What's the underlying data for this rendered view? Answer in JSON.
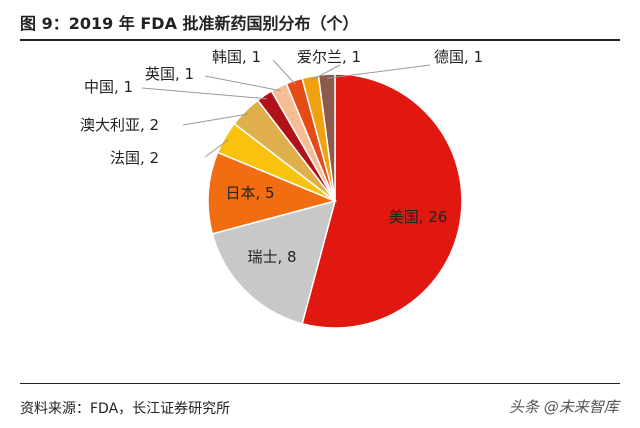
{
  "header": {
    "title": "图 9：2019 年 FDA 批准新药国别分布（个）"
  },
  "footer": {
    "source": "资料来源：FDA，长江证券研究所",
    "watermark": "头条 @未来智库"
  },
  "chart_data": {
    "type": "pie",
    "title": "图 9：2019 年 FDA 批准新药国别分布（个）",
    "series": [
      {
        "slices": [
          {
            "name": "美国",
            "value": 26,
            "label": "美国, 26",
            "color": "#E0180F"
          },
          {
            "name": "瑞士",
            "value": 8,
            "label": "瑞士, 8",
            "color": "#C8C8C8"
          },
          {
            "name": "日本",
            "value": 5,
            "label": "日本, 5",
            "color": "#F26C12"
          },
          {
            "name": "法国",
            "value": 2,
            "label": "法国, 2",
            "color": "#F8C20E"
          },
          {
            "name": "澳大利亚",
            "value": 2,
            "label": "澳大利亚, 2",
            "color": "#DFAF4B"
          },
          {
            "name": "中国",
            "value": 1,
            "label": "中国, 1",
            "color": "#B0121A"
          },
          {
            "name": "英国",
            "value": 1,
            "label": "英国, 1",
            "color": "#F7BE96"
          },
          {
            "name": "韩国",
            "value": 1,
            "label": "韩国, 1",
            "color": "#E64A17"
          },
          {
            "name": "爱尔兰",
            "value": 1,
            "label": "爱尔兰, 1",
            "color": "#F1A00F"
          },
          {
            "name": "德国",
            "value": 1,
            "label": "德国, 1",
            "color": "#8C5A4A"
          }
        ]
      }
    ]
  }
}
